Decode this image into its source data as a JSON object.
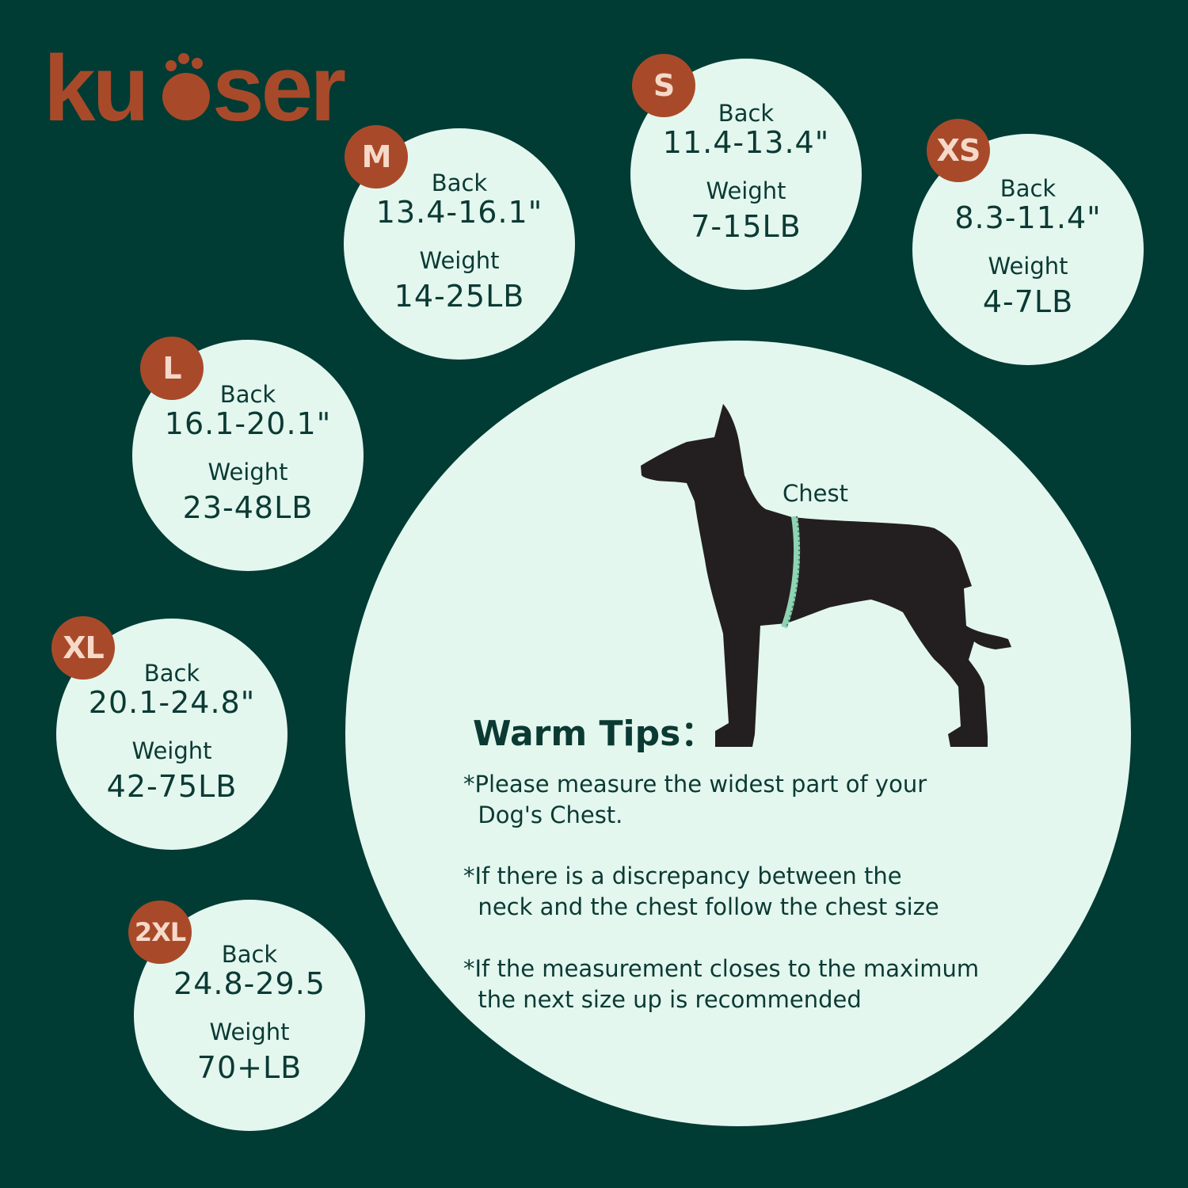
{
  "brand": {
    "logo_text": "kuoser",
    "color": "#a84a2a"
  },
  "colors": {
    "background": "#003b34",
    "circle": "#e3f7ef",
    "badge": "#a84a2a",
    "text": "#0b3a33",
    "tape": "#8fd3b3"
  },
  "sizes": [
    {
      "size": "M",
      "back_label": "Back",
      "back": "13.4-16.1\"",
      "weight_label": "Weight",
      "weight": "14-25LB"
    },
    {
      "size": "S",
      "back_label": "Back",
      "back": "11.4-13.4\"",
      "weight_label": "Weight",
      "weight": "7-15LB"
    },
    {
      "size": "XS",
      "back_label": "Back",
      "back": "8.3-11.4\"",
      "weight_label": "Weight",
      "weight": "4-7LB"
    },
    {
      "size": "L",
      "back_label": "Back",
      "back": "16.1-20.1\"",
      "weight_label": "Weight",
      "weight": "23-48LB"
    },
    {
      "size": "XL",
      "back_label": "Back",
      "back": "20.1-24.8\"",
      "weight_label": "Weight",
      "weight": "42-75LB"
    },
    {
      "size": "2XL",
      "back_label": "Back",
      "back": "24.8-29.5",
      "weight_label": "Weight",
      "weight": "70+LB"
    }
  ],
  "illustration": {
    "chest_label": "Chest",
    "icon": "dog-silhouette-with-measuring-tape"
  },
  "tips": {
    "title": "Warm Tips：",
    "items": [
      "*Please measure the widest part of your\n  Dog's Chest.",
      "*If there is a discrepancy between the\n  neck and the chest follow the chest size",
      "*If the measurement closes to the maximum\n  the next size up is recommended"
    ]
  }
}
